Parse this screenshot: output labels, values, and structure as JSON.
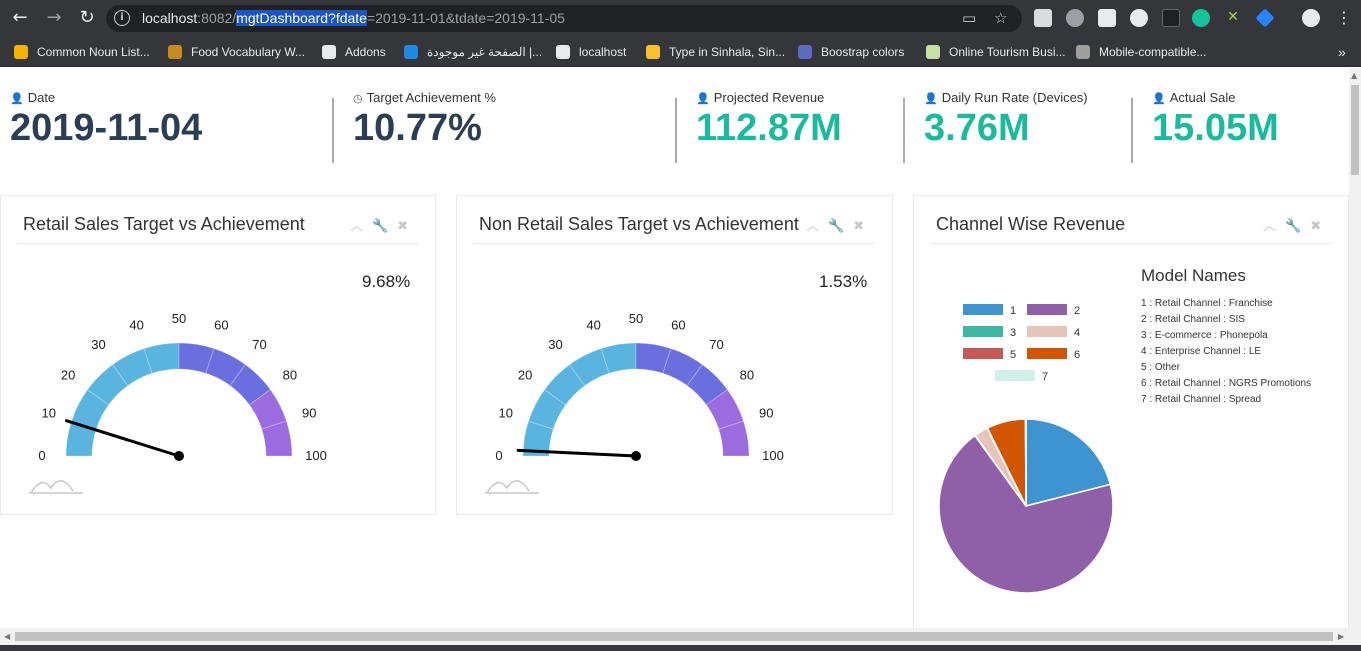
{
  "browser": {
    "url_host": "localhost",
    "url_port": ":8082/",
    "url_selected": "mgtDashboard?fdate",
    "url_rest": "=2019-11-01&tdate=2019-11-05",
    "bookmarks": [
      {
        "label": "Common Noun List...",
        "color": "#f4b400"
      },
      {
        "label": "Food Vocabulary W...",
        "color": "#c58d1b"
      },
      {
        "label": "Addons",
        "color": "#e8eaed"
      },
      {
        "label": "الصفحة غير موجودة |...",
        "color": "#1e88e5"
      },
      {
        "label": "localhost",
        "color": "#e8eaed"
      },
      {
        "label": "Type in Sinhala, Sin...",
        "color": "#fbc02d"
      },
      {
        "label": "Boostrap colors",
        "color": "#5c6bc0"
      },
      {
        "label": "Online Tourism Busi...",
        "color": "#c5e1a5"
      },
      {
        "label": "Mobile-compatible...",
        "color": "#9e9e9e"
      }
    ],
    "bookmarks_more": "»"
  },
  "stats": [
    {
      "label": "Date",
      "value": "2019-11-04",
      "icon": "user-icon",
      "glyph": "👤",
      "green": false
    },
    {
      "label": "Target Achievement %",
      "value": "10.77%",
      "icon": "clock-icon",
      "glyph": "◷",
      "green": false
    },
    {
      "label": "Projected Revenue",
      "value": "112.87M",
      "icon": "user-icon",
      "glyph": "👤",
      "green": true
    },
    {
      "label": "Daily Run Rate (Devices)",
      "value": "3.76M",
      "icon": "user-icon",
      "glyph": "👤",
      "green": true
    },
    {
      "label": "Actual Sale",
      "value": "15.05M",
      "icon": "user-icon",
      "glyph": "👤",
      "green": true
    }
  ],
  "panels": {
    "retail": {
      "title": "Retail Sales Target vs Achievement",
      "percent": "9.68%",
      "value": 9.68
    },
    "non_retail": {
      "title": "Non Retail Sales Target vs Achievement",
      "percent": "1.53%",
      "value": 1.53
    },
    "channel": {
      "title": "Channel Wise Revenue"
    }
  },
  "gauge_ticks": [
    "0",
    "10",
    "20",
    "30",
    "40",
    "50",
    "60",
    "70",
    "80",
    "90",
    "100"
  ],
  "gauge_colors": {
    "low": "#5ab4e0",
    "mid": "#6a6fe0",
    "high": "#9b6be0"
  },
  "chart_data": {
    "type": "pie",
    "legend_title": "Model Names",
    "categories": [
      "1",
      "2",
      "3",
      "4",
      "5",
      "6",
      "7"
    ],
    "descriptions": [
      "1 : Retail Channel : Franchise",
      "2 : Retail Channel : SIS",
      "3 : E-commerce : Phonepola",
      "4 : Enterprise Channel : LE",
      "5 : Other",
      "6 : Retail Channel : NGRS Promotions",
      "7 : Retail Channel : Spread"
    ],
    "values": [
      21,
      69,
      0.1,
      2.5,
      0.1,
      7.2,
      0.1
    ],
    "colors": [
      "#3e94d1",
      "#8f5fa8",
      "#3bb8a1",
      "#e7c4b9",
      "#c45a56",
      "#d45500",
      "#d2f0ea"
    ],
    "legend_placement": "top"
  }
}
